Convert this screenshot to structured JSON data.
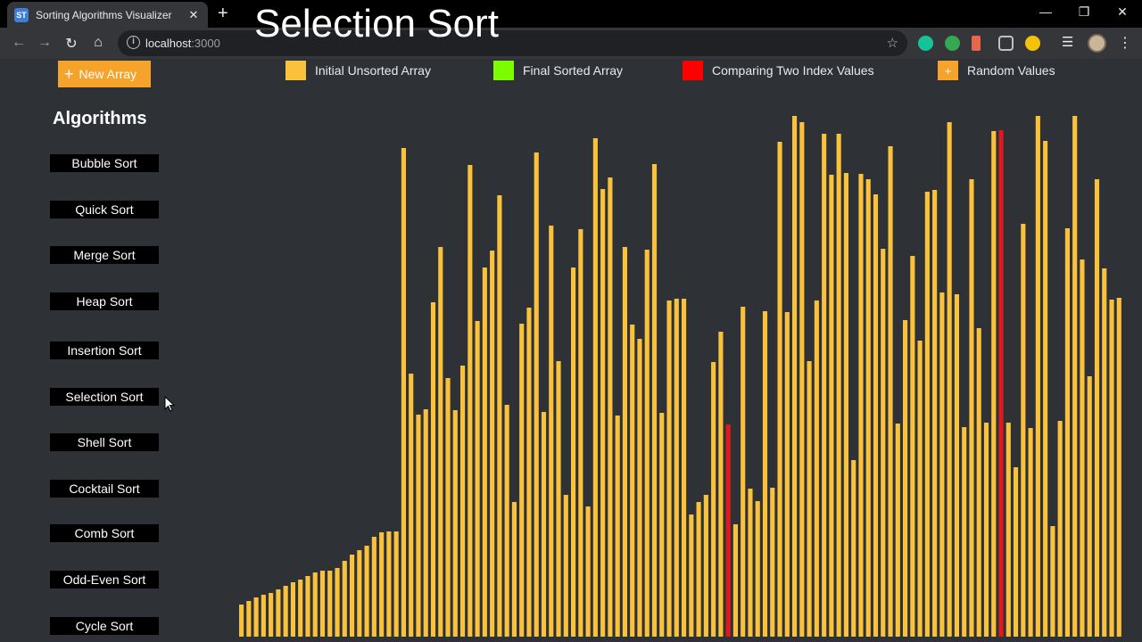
{
  "browser": {
    "tab_title": "Sorting Algorithms Visualizer",
    "tab_favicon": "ST",
    "url_host": "localhost",
    "url_port": ":3000",
    "overlay_title": "Selection Sort"
  },
  "controls": {
    "new_array_label": "New Array"
  },
  "legend": [
    {
      "label": "Initial Unsorted Array",
      "color": "#f9c13c",
      "glyph": ""
    },
    {
      "label": "Final Sorted Array",
      "color": "#7cfc00",
      "glyph": ""
    },
    {
      "label": "Comparing Two Index Values",
      "color": "#ff0000",
      "glyph": ""
    },
    {
      "label": "Random Values",
      "color": "#f5a32a",
      "glyph": "+"
    }
  ],
  "sidebar": {
    "title": "Algorithms",
    "items": [
      "Bubble Sort",
      "Quick Sort",
      "Merge Sort",
      "Heap Sort",
      "Insertion Sort",
      "Selection Sort",
      "Shell Sort",
      "Cocktail Sort",
      "Comb Sort",
      "Odd-Even Sort",
      "Cycle Sort"
    ]
  },
  "colors": {
    "bar": "#f9c13c",
    "compare": "#e0191f",
    "background": "#2e3236"
  },
  "chart_data": {
    "type": "bar",
    "values": [
      36,
      40,
      44,
      47,
      49,
      53,
      57,
      61,
      64,
      68,
      72,
      74,
      74,
      77,
      85,
      92,
      97,
      102,
      112,
      117,
      118,
      118,
      548,
      295,
      249,
      255,
      375,
      437,
      290,
      254,
      304,
      529,
      354,
      414,
      433,
      495,
      260,
      151,
      351,
      369,
      543,
      252,
      461,
      309,
      159,
      414,
      457,
      146,
      559,
      502,
      515,
      248,
      437,
      350,
      334,
      434,
      530,
      251,
      377,
      379,
      379,
      137,
      151,
      159,
      308,
      342,
      238,
      126,
      370,
      166,
      152,
      365,
      167,
      555,
      364,
      584,
      577,
      309,
      377,
      564,
      518,
      564,
      520,
      198,
      519,
      513,
      496,
      435,
      550,
      239,
      355,
      427,
      332,
      499,
      501,
      386,
      577,
      384,
      235,
      513,
      346,
      240,
      567,
      568,
      240,
      190,
      463,
      234,
      584,
      556,
      124,
      242,
      458,
      584,
      423,
      292,
      513,
      413,
      378,
      380
    ],
    "compare_indices": [
      66,
      103
    ]
  }
}
